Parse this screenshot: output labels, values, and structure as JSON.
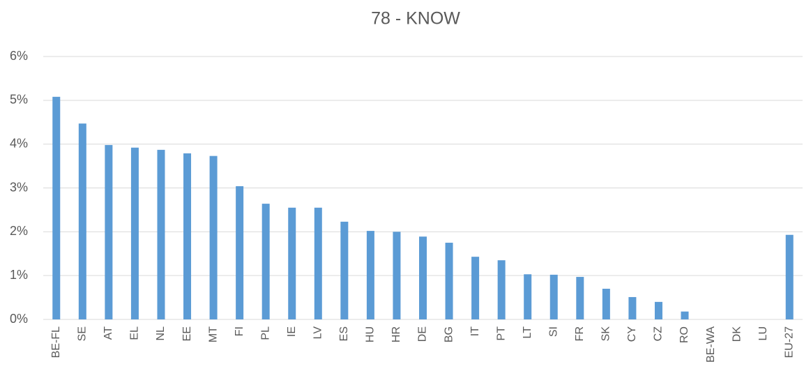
{
  "chart_data": {
    "type": "bar",
    "title": "78 - KNOW",
    "categories": [
      "BE-FL",
      "SE",
      "AT",
      "EL",
      "NL",
      "EE",
      "MT",
      "FI",
      "PL",
      "IE",
      "LV",
      "ES",
      "HU",
      "HR",
      "DE",
      "BG",
      "IT",
      "PT",
      "LT",
      "SI",
      "FR",
      "SK",
      "CY",
      "CZ",
      "RO",
      "BE-WA",
      "DK",
      "LU",
      "EU-27"
    ],
    "values": [
      5.08,
      4.47,
      3.98,
      3.92,
      3.87,
      3.79,
      3.73,
      3.04,
      2.64,
      2.55,
      2.55,
      2.23,
      2.02,
      2.0,
      1.89,
      1.75,
      1.43,
      1.35,
      1.03,
      1.02,
      0.97,
      0.7,
      0.51,
      0.4,
      0.18,
      0,
      0,
      0,
      1.93
    ],
    "color": "#5b9bd5",
    "ylim": [
      0,
      6
    ],
    "yticks": [
      {
        "value": 0,
        "label": "0%"
      },
      {
        "value": 1,
        "label": "1%"
      },
      {
        "value": 2,
        "label": "2%"
      },
      {
        "value": 3,
        "label": "3%"
      },
      {
        "value": 4,
        "label": "4%"
      },
      {
        "value": 5,
        "label": "5%"
      },
      {
        "value": 6,
        "label": "6%"
      }
    ],
    "grid": true
  }
}
